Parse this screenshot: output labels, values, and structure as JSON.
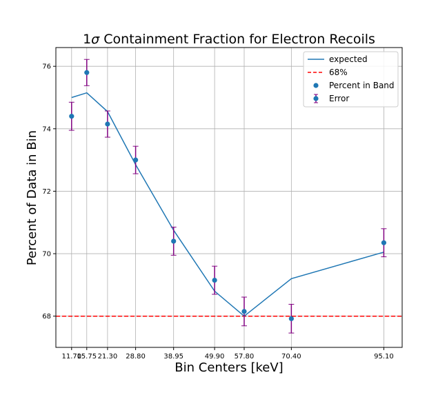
{
  "chart_data": {
    "type": "line",
    "title": "1σ Containment Fraction for Electron Recoils",
    "title_prefix": "1",
    "title_sigma": "σ",
    "title_suffix": " Containment Fraction for Electron Recoils",
    "xlabel": "Bin Centers [keV]",
    "ylabel": "Percent of Data in Bin",
    "xlim": [
      7.5,
      100.0
    ],
    "ylim": [
      67.0,
      76.6
    ],
    "x_ticks": [
      11.7,
      15.75,
      21.3,
      28.8,
      38.95,
      49.9,
      57.8,
      70.4,
      95.1
    ],
    "x_tick_labels": [
      "11.70",
      "15.75",
      "21.30",
      "28.80",
      "38.95",
      "49.90",
      "57.80",
      "70.40",
      "95.10"
    ],
    "y_ticks": [
      68,
      70,
      72,
      74,
      76
    ],
    "y_tick_labels": [
      "68",
      "70",
      "72",
      "74",
      "76"
    ],
    "grid": true,
    "legend_position": "top-right",
    "legend": [
      "expected",
      "68%",
      "Percent in Band",
      "Error"
    ],
    "series": [
      {
        "name": "expected",
        "kind": "line",
        "color": "#1f77b4",
        "x": [
          11.7,
          15.75,
          21.3,
          28.8,
          38.95,
          49.9,
          57.8,
          70.4,
          95.1
        ],
        "y": [
          75.0,
          75.15,
          74.55,
          72.85,
          70.75,
          68.8,
          68.0,
          69.2,
          70.05
        ]
      },
      {
        "name": "68%",
        "kind": "hline",
        "color": "#ff0000",
        "y": 68.0
      },
      {
        "name": "Percent in Band",
        "kind": "scatter",
        "color": "#1f77b4",
        "x": [
          11.7,
          15.75,
          21.3,
          28.8,
          38.95,
          49.9,
          57.8,
          70.4,
          95.1
        ],
        "y": [
          74.4,
          75.8,
          74.15,
          73.0,
          70.4,
          69.15,
          68.15,
          67.92,
          70.35
        ]
      },
      {
        "name": "Error",
        "kind": "errorbar",
        "color": "#800080",
        "x": [
          11.7,
          15.75,
          21.3,
          28.8,
          38.95,
          49.9,
          57.8,
          70.4,
          95.1
        ],
        "y": [
          74.4,
          75.8,
          74.15,
          73.0,
          70.4,
          69.15,
          68.15,
          67.92,
          70.35
        ],
        "err": [
          0.45,
          0.42,
          0.42,
          0.44,
          0.45,
          0.45,
          0.46,
          0.46,
          0.45
        ]
      }
    ]
  }
}
